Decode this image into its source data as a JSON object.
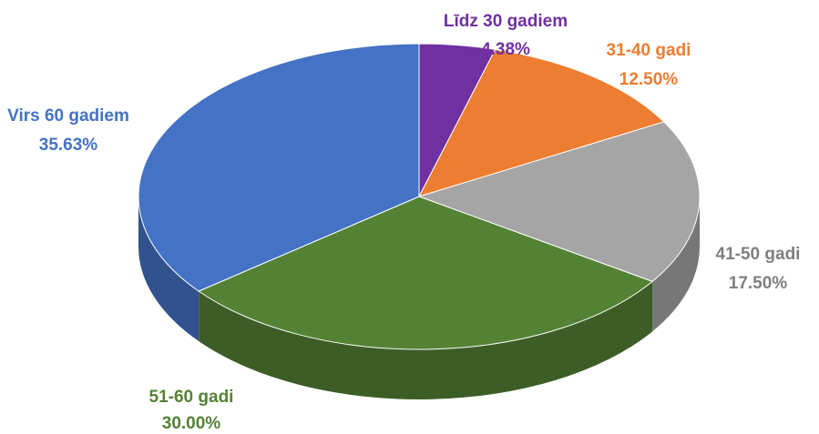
{
  "chart_data": {
    "type": "pie",
    "categories": [
      "Līdz 30 gadiem",
      "31-40 gadi",
      "41-50 gadi",
      "51-60 gadi",
      "Virs 60 gadiem"
    ],
    "values": [
      4.38,
      12.5,
      17.5,
      30.0,
      35.63
    ],
    "value_labels": [
      "4.38%",
      "12.50%",
      "17.50%",
      "30.00%",
      "35.63%"
    ],
    "colors": [
      "#7030a0",
      "#ed7d31",
      "#a5a5a5",
      "#548235",
      "#4472c4"
    ]
  }
}
